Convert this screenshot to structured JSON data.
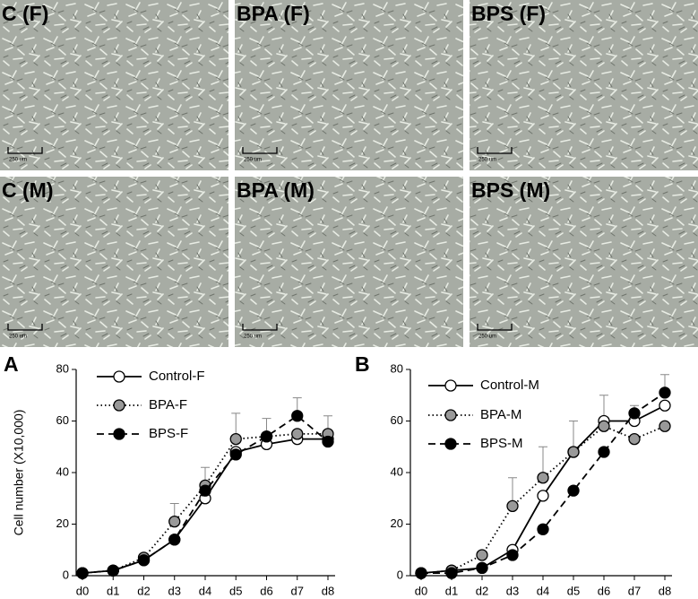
{
  "panels": [
    {
      "label": "C (F)",
      "scale_bar": "250 um"
    },
    {
      "label": "BPA (F)",
      "scale_bar": "250 um"
    },
    {
      "label": "BPS (F)",
      "scale_bar": "250 um"
    },
    {
      "label": "C (M)",
      "scale_bar": "250 um"
    },
    {
      "label": "BPA (M)",
      "scale_bar": "250 um"
    },
    {
      "label": "BPS (M)",
      "scale_bar": "250 um"
    }
  ],
  "chart_data": [
    {
      "type": "line",
      "panel_label": "A",
      "y_label": "Cell number (X10,000)",
      "categories": [
        "d0",
        "d1",
        "d2",
        "d3",
        "d4",
        "d5",
        "d6",
        "d7",
        "d8"
      ],
      "ylim": [
        0,
        80
      ],
      "yticks": [
        0,
        20,
        40,
        60,
        80
      ],
      "series": [
        {
          "name": "Control-F",
          "color": "#000000",
          "marker_fill": "#ffffff",
          "line_style": "solid",
          "values": [
            1,
            2,
            6,
            14,
            30,
            48,
            51,
            53,
            53
          ],
          "errors": [
            null,
            null,
            null,
            null,
            null,
            null,
            null,
            null,
            null
          ]
        },
        {
          "name": "BPA-F",
          "color": "#000000",
          "marker_fill": "#999999",
          "line_style": "dotted",
          "values": [
            1,
            2,
            7,
            21,
            35,
            53,
            54,
            55,
            55
          ],
          "errors": [
            null,
            null,
            null,
            7,
            7,
            10,
            null,
            null,
            7
          ]
        },
        {
          "name": "BPS-F",
          "color": "#000000",
          "marker_fill": "#000000",
          "line_style": "dashed",
          "values": [
            1,
            2,
            6,
            14,
            33,
            47,
            54,
            62,
            52
          ],
          "errors": [
            null,
            null,
            null,
            null,
            null,
            null,
            7,
            7,
            null
          ]
        }
      ]
    },
    {
      "type": "line",
      "panel_label": "B",
      "categories": [
        "d0",
        "d1",
        "d2",
        "d3",
        "d4",
        "d5",
        "d6",
        "d7",
        "d8"
      ],
      "ylim": [
        0,
        80
      ],
      "yticks": [
        0,
        20,
        40,
        60,
        80
      ],
      "series": [
        {
          "name": "Control-M",
          "color": "#000000",
          "marker_fill": "#ffffff",
          "line_style": "solid",
          "values": [
            1,
            2,
            3,
            10,
            31,
            48,
            60,
            60,
            66
          ],
          "errors": [
            null,
            null,
            null,
            null,
            null,
            null,
            10,
            null,
            null
          ]
        },
        {
          "name": "BPA-M",
          "color": "#000000",
          "marker_fill": "#999999",
          "line_style": "dotted",
          "values": [
            1,
            2,
            8,
            27,
            38,
            48,
            58,
            53,
            58
          ],
          "errors": [
            null,
            null,
            null,
            11,
            12,
            12,
            null,
            null,
            null
          ]
        },
        {
          "name": "BPS-M",
          "color": "#000000",
          "marker_fill": "#000000",
          "line_style": "dashed",
          "values": [
            1,
            1,
            3,
            8,
            18,
            33,
            48,
            63,
            71
          ],
          "errors": [
            null,
            null,
            null,
            null,
            null,
            null,
            null,
            3,
            7
          ]
        }
      ]
    }
  ]
}
